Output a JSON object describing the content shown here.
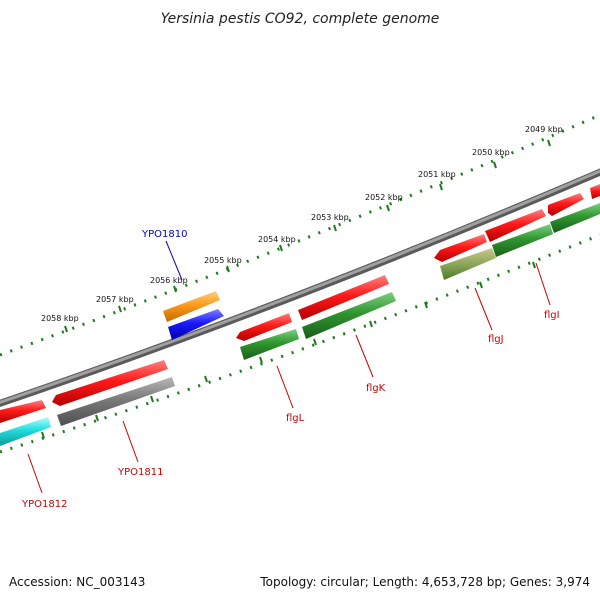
{
  "title": "Yersinia pestis CO92, complete genome",
  "footer": {
    "accession": "Accession: NC_003143",
    "summary": "Topology: circular; Length: 4,653,728 bp; Genes: 3,974"
  },
  "colors": {
    "backbone": "#8c8c8c",
    "ruler": "#1f7a1f",
    "label_red": "#cc0000",
    "label_blue": "#0000cc"
  },
  "ruler_labels": [
    "2049 kbp",
    "2050 kbp",
    "2051 kbp",
    "2052 kbp",
    "2053 kbp",
    "2054 kbp",
    "2055 kbp",
    "2056 kbp",
    "2057 kbp",
    "2058 kbp"
  ],
  "genes": [
    {
      "name": "flgI",
      "color": "#cc0000"
    },
    {
      "name": "flgJ",
      "color": "#cc0000"
    },
    {
      "name": "flgK",
      "color": "#cc0000"
    },
    {
      "name": "flgL",
      "color": "#cc0000"
    },
    {
      "name": "YPO1810",
      "color": "#0000cc"
    },
    {
      "name": "YPO1811",
      "color": "#cc0000"
    },
    {
      "name": "YPO1812",
      "color": "#cc0000"
    }
  ]
}
